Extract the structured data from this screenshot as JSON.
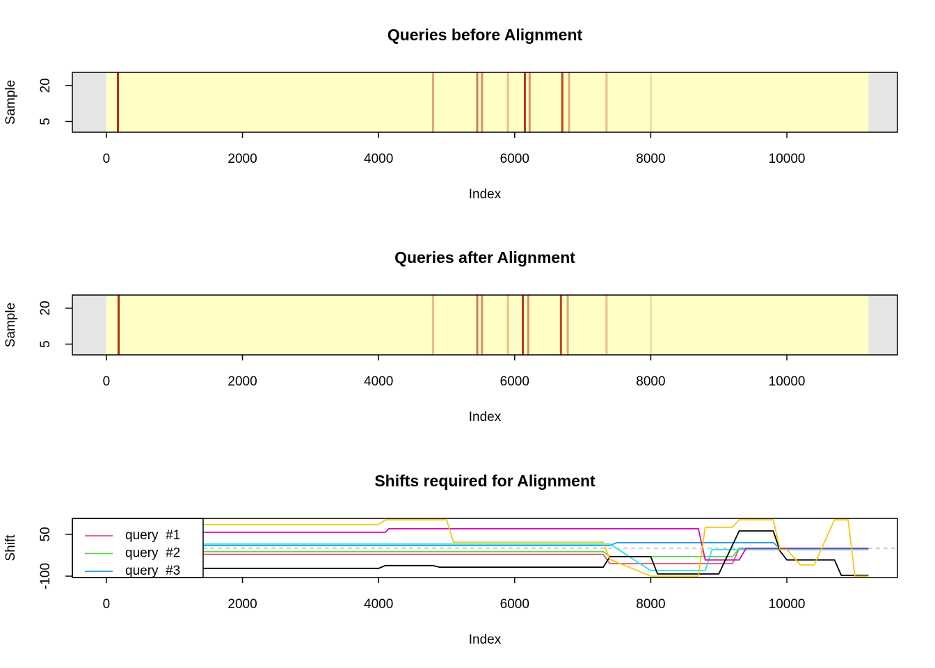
{
  "chart_data": [
    {
      "type": "heatmap",
      "title": "Queries before Alignment",
      "x_label": "Index",
      "y_label": "Sample",
      "xlim": [
        -500,
        11625
      ],
      "xticks": [
        0,
        2000,
        4000,
        6000,
        8000,
        10000
      ],
      "ylim": [
        0.5,
        25.5
      ],
      "yticks": [
        5,
        20
      ],
      "data_xlim": [
        0,
        11200
      ],
      "colorscale": [
        "#ffffc6",
        "#b22200"
      ],
      "background": "#e5e5e5",
      "stripe_x": [
        170,
        4800,
        5450,
        5520,
        5900,
        6150,
        6220,
        6700,
        6800,
        7350,
        8000
      ],
      "stripe_values": [
        0.95,
        0.4,
        0.6,
        0.5,
        0.3,
        0.9,
        0.5,
        0.85,
        0.4,
        0.3,
        0.15
      ]
    },
    {
      "type": "heatmap",
      "title": "Queries after Alignment",
      "x_label": "Index",
      "y_label": "Sample",
      "xlim": [
        -500,
        11625
      ],
      "xticks": [
        0,
        2000,
        4000,
        6000,
        8000,
        10000
      ],
      "ylim": [
        0.5,
        25.5
      ],
      "yticks": [
        5,
        20
      ],
      "data_xlim": [
        0,
        11200
      ],
      "colorscale": [
        "#ffffc6",
        "#b22200"
      ],
      "background": "#e5e5e5",
      "stripe_x": [
        180,
        4800,
        5450,
        5520,
        5900,
        6120,
        6200,
        6680,
        6780,
        7350,
        8000
      ],
      "stripe_values": [
        0.95,
        0.3,
        0.6,
        0.5,
        0.3,
        0.9,
        0.5,
        0.85,
        0.4,
        0.3,
        0.15
      ]
    },
    {
      "type": "line",
      "title": "Shifts required for Alignment",
      "x_label": "Index",
      "y_label": "Shift",
      "xlim": [
        -500,
        11625
      ],
      "xticks": [
        0,
        2000,
        4000,
        6000,
        8000,
        10000
      ],
      "ylim": [
        -105,
        107
      ],
      "yticks": [
        -100,
        50
      ],
      "hline": 0,
      "legend": "topleft",
      "series": [
        {
          "name": "query  #1",
          "color": "#df536b",
          "x": [
            0,
            7300,
            7400,
            9200,
            9300,
            11200
          ],
          "values": [
            -22,
            -22,
            -55,
            -55,
            0,
            0
          ]
        },
        {
          "name": "query  #2",
          "color": "#61d04f",
          "x": [
            0,
            7300,
            7400,
            9200,
            9300,
            11200
          ],
          "values": [
            -12,
            -12,
            -30,
            -30,
            -2,
            -2
          ]
        },
        {
          "name": "query  #3",
          "color": "#2297e6",
          "x": [
            0,
            7400,
            7500,
            9800,
            9900,
            11200
          ],
          "values": [
            10,
            10,
            20,
            20,
            0,
            0
          ]
        },
        {
          "color": "#28e2e5",
          "x": [
            0,
            7400,
            8000,
            8800,
            8900,
            11200
          ],
          "values": [
            15,
            15,
            -80,
            -80,
            -5,
            -5
          ]
        },
        {
          "color": "#cd0bbc",
          "x": [
            0,
            4100,
            4150,
            8700,
            8800,
            9300,
            9400,
            11200
          ],
          "values": [
            57,
            57,
            70,
            70,
            -42,
            -42,
            0,
            0
          ]
        },
        {
          "color": "#000000",
          "x": [
            0,
            4000,
            4100,
            4800,
            4900,
            7300,
            7400,
            8000,
            8100,
            9000,
            9300,
            9800,
            9900,
            10000,
            10700,
            10800,
            11200
          ],
          "values": [
            -72,
            -72,
            -62,
            -62,
            -68,
            -68,
            -30,
            -30,
            -92,
            -92,
            62,
            62,
            -10,
            -42,
            -42,
            -97,
            -97
          ]
        },
        {
          "color": "#f5c710",
          "x": [
            0,
            4000,
            4100,
            5000,
            5100,
            7300,
            7400,
            8000,
            8700,
            8800,
            9200,
            9300,
            9800,
            9900,
            10000,
            10200,
            10400,
            10700,
            10900,
            11000,
            11200
          ],
          "values": [
            85,
            85,
            102,
            102,
            22,
            22,
            -40,
            -100,
            -100,
            75,
            75,
            102,
            102,
            -5,
            -5,
            -60,
            -60,
            102,
            102,
            -100,
            -100
          ]
        }
      ]
    }
  ]
}
